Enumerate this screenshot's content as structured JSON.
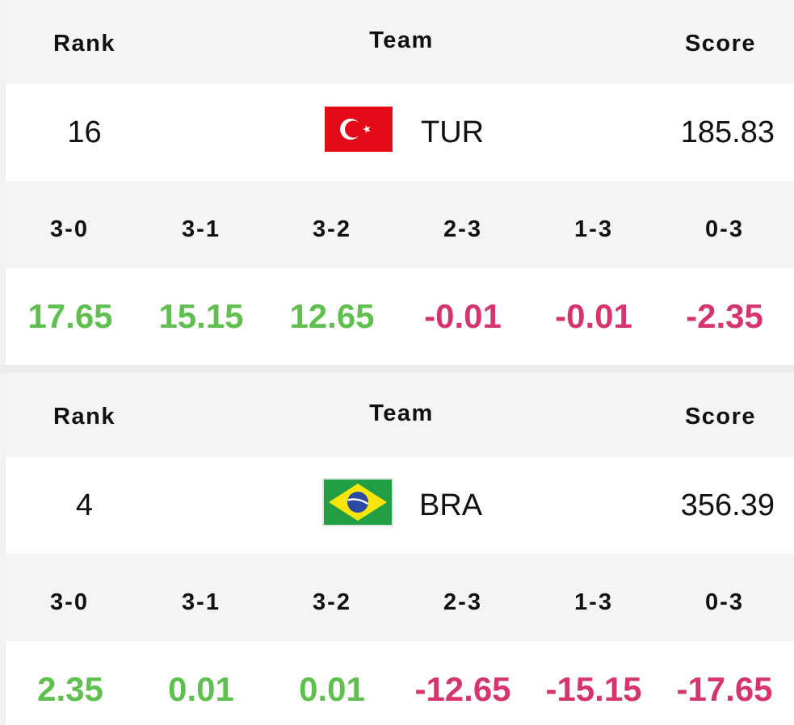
{
  "headers": {
    "rank": "Rank",
    "team": "Team",
    "score": "Score"
  },
  "set_labels": [
    "3-0",
    "3-1",
    "3-2",
    "2-3",
    "1-3",
    "0-3"
  ],
  "teams": [
    {
      "rank": "16",
      "code": "TUR",
      "flag": "turkey-flag-icon",
      "score": "185.83",
      "deltas": [
        "17.65",
        "15.15",
        "12.65",
        "-0.01",
        "-0.01",
        "-2.35"
      ]
    },
    {
      "rank": "4",
      "code": "BRA",
      "flag": "brazil-flag-icon",
      "score": "356.39",
      "deltas": [
        "2.35",
        "0.01",
        "0.01",
        "-12.65",
        "-15.15",
        "-17.65"
      ]
    }
  ],
  "colors": {
    "positive": "#5fbf4f",
    "negative": "#d4356e",
    "header_bg": "#f4f4f4"
  }
}
